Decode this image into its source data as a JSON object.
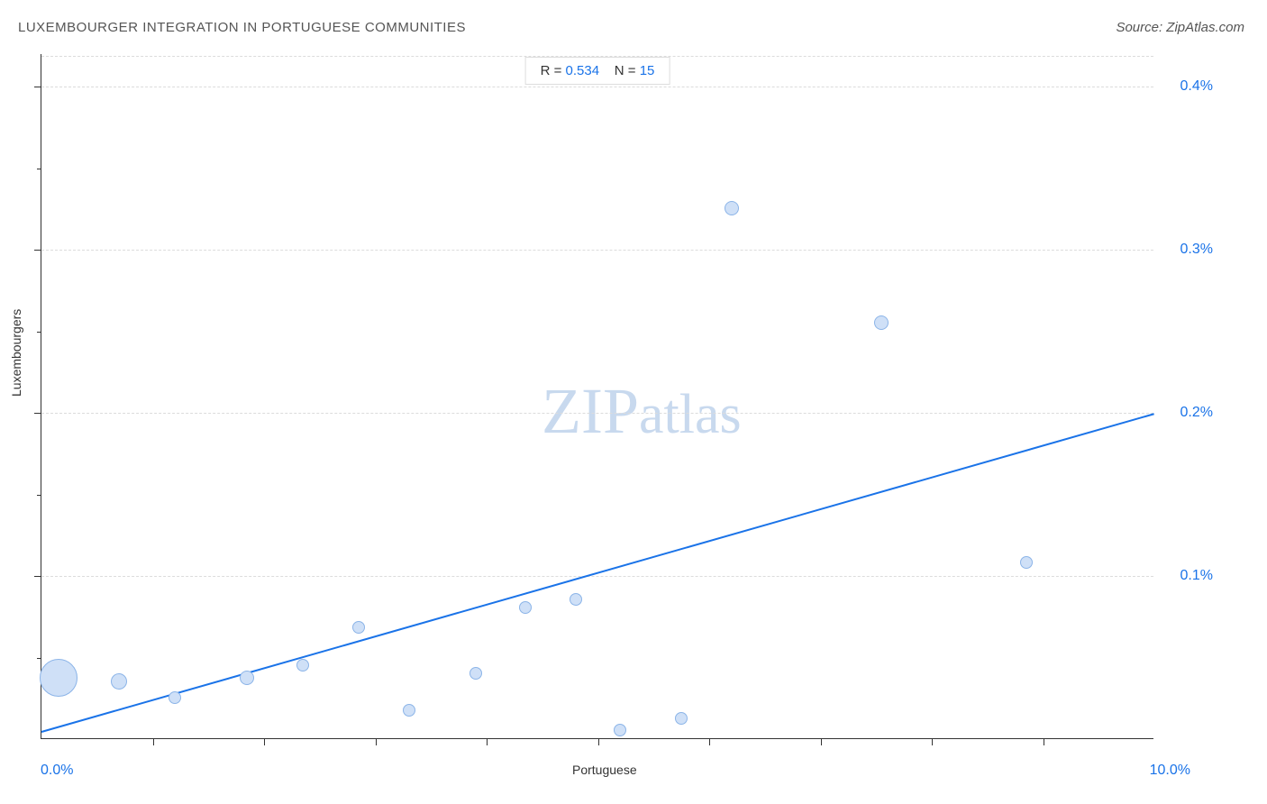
{
  "title": "LUXEMBOURGER INTEGRATION IN PORTUGUESE COMMUNITIES",
  "source": "Source: ZipAtlas.com",
  "stats": {
    "r_label": "R =",
    "r_value": "0.534",
    "n_label": "N =",
    "n_value": "15"
  },
  "axes": {
    "x_label": "Portuguese",
    "y_label": "Luxembourgers",
    "x_min_label": "0.0%",
    "x_max_label": "10.0%",
    "xlim": [
      0,
      10
    ],
    "ylim": [
      0,
      0.42
    ],
    "y_ticks": [
      {
        "value": 0.1,
        "label": "0.1%"
      },
      {
        "value": 0.2,
        "label": "0.2%"
      },
      {
        "value": 0.3,
        "label": "0.3%"
      },
      {
        "value": 0.4,
        "label": "0.4%"
      }
    ],
    "x_tick_values": [
      1,
      2,
      3,
      4,
      5,
      6,
      7,
      8,
      9
    ],
    "y_tick_minor": [
      0.05,
      0.15,
      0.25,
      0.35
    ]
  },
  "watermark": {
    "zip": "ZIP",
    "atlas": "atlas"
  },
  "chart": {
    "type": "scatter",
    "background_color": "#ffffff",
    "grid_color": "#dcdcdc",
    "point_fill": "#cfe0f7",
    "point_stroke": "#8bb4e8",
    "line_color": "#1a73e8",
    "regression_line": {
      "x1": 0,
      "y1": 0.005,
      "x2": 10,
      "y2": 0.2
    },
    "points": [
      {
        "x": 0.15,
        "y": 0.037,
        "size": 42
      },
      {
        "x": 0.7,
        "y": 0.035,
        "size": 18
      },
      {
        "x": 1.2,
        "y": 0.025,
        "size": 14
      },
      {
        "x": 1.85,
        "y": 0.037,
        "size": 16
      },
      {
        "x": 2.35,
        "y": 0.045,
        "size": 14
      },
      {
        "x": 2.85,
        "y": 0.068,
        "size": 14
      },
      {
        "x": 3.3,
        "y": 0.017,
        "size": 14
      },
      {
        "x": 3.9,
        "y": 0.04,
        "size": 14
      },
      {
        "x": 4.35,
        "y": 0.08,
        "size": 14
      },
      {
        "x": 4.8,
        "y": 0.085,
        "size": 14
      },
      {
        "x": 5.2,
        "y": 0.005,
        "size": 14
      },
      {
        "x": 5.75,
        "y": 0.012,
        "size": 14
      },
      {
        "x": 6.2,
        "y": 0.325,
        "size": 16
      },
      {
        "x": 7.55,
        "y": 0.255,
        "size": 16
      },
      {
        "x": 8.85,
        "y": 0.108,
        "size": 14
      }
    ]
  }
}
